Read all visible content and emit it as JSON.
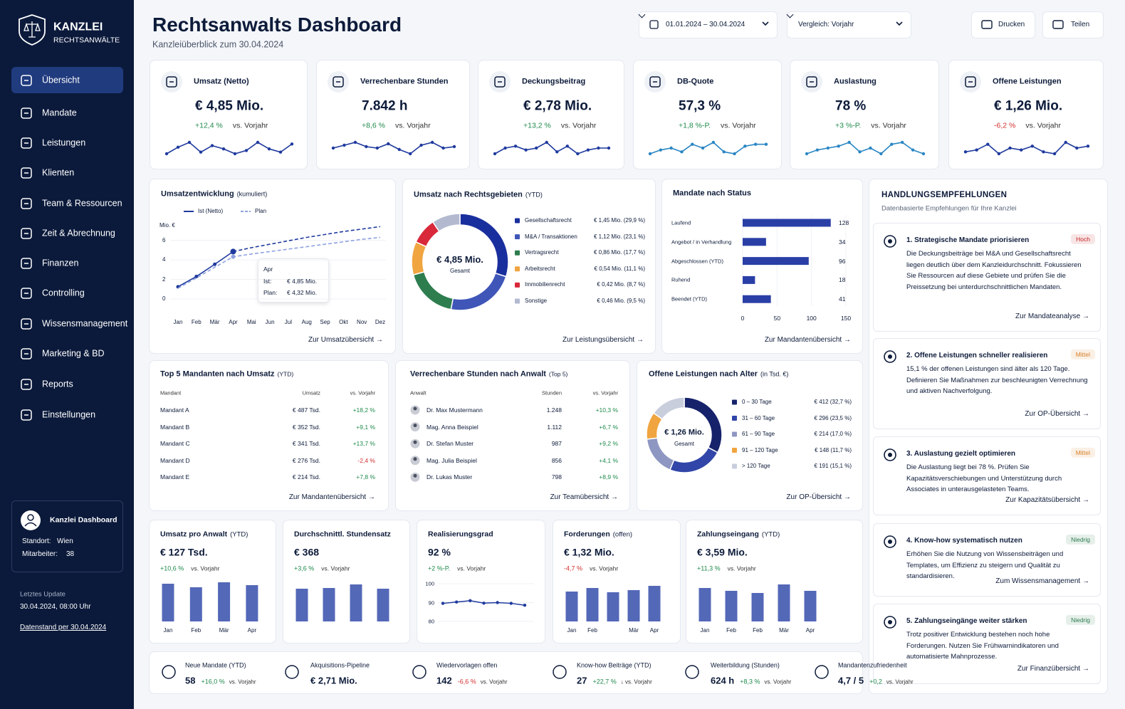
{
  "sidebar": {
    "brand": "KANZLEI",
    "brand_sub": "RECHTSANWÄLTE",
    "nav": [
      "Übersicht",
      "Mandate",
      "Leistungen",
      "Klienten",
      "Team & Ressourcen",
      "Zeit & Abrechnung",
      "Finanzen",
      "Controlling",
      "Wissensmanagement",
      "Marketing & BD",
      "Reports",
      "Einstellungen"
    ],
    "active": "Übersicht",
    "profile": {
      "name": "Kanzlei Dashboard",
      "rows": [
        {
          "label": "Standort:",
          "value": "Wien"
        },
        {
          "label": "Mitarbeiter:",
          "value": "38"
        }
      ]
    },
    "update_label": "Letztes Update",
    "update_value": "30.04.2024, 08:00 Uhr",
    "data_link": "Datenstand per 30.04.2024"
  },
  "header": {
    "title": "Rechtsanwalts Dashboard",
    "subtitle": "Kanzleiüberblick zum 30.04.2024",
    "date_range": "01.01.2024 – 30.04.2024",
    "comparison": "Vergleich: Vorjahr",
    "buttons": [
      "Drucken",
      "Teilen"
    ]
  },
  "kpis": [
    {
      "label": "Umsatz (Netto)",
      "value": "€ 4,85 Mio.",
      "delta": "+12,4 %",
      "compare": "vs. Vorjahr",
      "sparkline": {
        "color": "#1f3a9e",
        "values": [
          3.2,
          3.6,
          3.9,
          3.3,
          3.7,
          3.5,
          3.2,
          3.4,
          3.9,
          3.5,
          3.3,
          3.8
        ]
      }
    },
    {
      "label": "Verrechenbare Stunden",
      "value": "7.842 h",
      "delta": "+8,6 %",
      "compare": "vs. Vorjahr",
      "sparkline": {
        "color": "#1f3a9e",
        "values": [
          3.4,
          3.6,
          3.8,
          3.5,
          3.4,
          3.7,
          3.3,
          3.0,
          3.6,
          3.8,
          3.4,
          3.5
        ]
      }
    },
    {
      "label": "Deckungsbeitrag",
      "value": "€ 2,78 Mio.",
      "delta": "+13,2 %",
      "compare": "vs. Vorjahr",
      "sparkline": {
        "color": "#1f3a9e",
        "values": [
          3.2,
          3.5,
          3.6,
          3.4,
          3.5,
          3.8,
          3.3,
          3.6,
          3.2,
          3.4,
          3.5,
          3.5
        ]
      }
    },
    {
      "label": "DB-Quote",
      "value": "57,3 %",
      "delta": "+1,8 %-P.",
      "compare": "vs. Vorjahr",
      "sparkline": {
        "color": "#2a86c4",
        "values": [
          3.1,
          3.3,
          3.4,
          3.2,
          3.6,
          3.4,
          3.7,
          3.2,
          3.1,
          3.5,
          3.6,
          3.6
        ]
      }
    },
    {
      "label": "Auslastung",
      "value": "78 %",
      "delta": "+3 %-P.",
      "compare": "vs. Vorjahr",
      "sparkline": {
        "color": "#2a86c4",
        "values": [
          3.2,
          3.4,
          3.5,
          3.6,
          3.8,
          3.3,
          3.5,
          3.2,
          3.7,
          3.8,
          3.4,
          3.2
        ]
      }
    },
    {
      "label": "Offene Leistungen",
      "value": "€ 1,26 Mio.",
      "delta": "-6,2 %",
      "compare": "vs. Vorjahr",
      "sparkline": {
        "color": "#1f3a9e",
        "values": [
          3.3,
          3.4,
          3.7,
          3.2,
          3.5,
          3.4,
          3.6,
          3.3,
          3.2,
          3.8,
          3.5,
          3.6
        ]
      }
    }
  ],
  "revenue_trend": {
    "type": "line",
    "title": "Umsatzentwicklung",
    "title_note": "(kumuliert)",
    "y_label": "Mio. €",
    "categories": [
      "Jan",
      "Feb",
      "Mär",
      "Apr",
      "Mai",
      "Jun",
      "Jul",
      "Aug",
      "Sep",
      "Okt",
      "Nov",
      "Dez"
    ],
    "series": [
      {
        "name": "Ist (Netto)",
        "color": "#1f3a9e",
        "values": [
          1.25,
          2.3,
          3.55,
          4.85,
          5.25,
          5.6,
          5.95,
          6.3,
          6.6,
          6.9,
          7.15,
          7.4
        ]
      },
      {
        "name": "Plan",
        "color": "#8fa2e0",
        "dashed": true,
        "values": [
          1.1,
          2.15,
          3.25,
          4.32,
          4.6,
          4.85,
          5.1,
          5.35,
          5.6,
          5.85,
          6.1,
          6.3
        ]
      }
    ],
    "ylim": [
      0,
      7.5
    ],
    "yticks": [
      0,
      2,
      4,
      6
    ],
    "tooltip": {
      "category": "Apr",
      "rows": [
        {
          "label": "Ist:",
          "value": "€ 4,85 Mio."
        },
        {
          "label": "Plan:",
          "value": "€ 4,32 Mio."
        }
      ]
    },
    "link": "Zur Umsatzübersicht"
  },
  "revenue_by_area": {
    "type": "donut",
    "title": "Umsatz nach Rechtsgebieten",
    "title_note": "(YTD)",
    "center_value": "€ 4,85 Mio.",
    "center_label": "Gesamt",
    "categories": [
      "Gesellschaftsrecht",
      "M&A / Transaktionen",
      "Vertragsrecht",
      "Arbeitsrecht",
      "Immobilienrecht",
      "Sonstige"
    ],
    "values": [
      29.9,
      23.1,
      17.7,
      11.1,
      8.7,
      9.5
    ],
    "value_labels": [
      "€ 1,45 Mio. (29,9 %)",
      "€ 1,12 Mio. (23,1 %)",
      "€ 0,86 Mio. (17,7 %)",
      "€ 0,54 Mio. (11,1 %)",
      "€ 0,42 Mio. (8,7 %)",
      "€ 0,46 Mio. (9,5 %)"
    ],
    "colors": [
      "#1a2f9e",
      "#3f56b8",
      "#2e7d4f",
      "#f0a540",
      "#d8283a",
      "#b3bad0"
    ],
    "link": "Zur Leistungsübersicht"
  },
  "mandate_status": {
    "type": "hbar",
    "title": "Mandate nach Status",
    "categories": [
      "Laufend",
      "Angebot / in Verhandlung",
      "Abgeschlossen (YTD)",
      "Ruhend",
      "Beendet (YTD)"
    ],
    "values": [
      128,
      34,
      96,
      18,
      41
    ],
    "color": "#2a3fa6",
    "xlim": [
      0,
      150
    ],
    "xticks": [
      0,
      50,
      100,
      150
    ],
    "link": "Zur Mandantenübersicht"
  },
  "recommendations": {
    "title": "HANDLUNGSEMPFEHLUNGEN",
    "subtitle": "Datenbasierte Empfehlungen für Ihre Kanzlei",
    "items": [
      {
        "title": "1. Strategische Mandate priorisieren",
        "priority": "Hoch",
        "priority_color": "#c62828",
        "text": "Die Deckungsbeiträge bei M&A und Gesellschaftsrecht liegen deutlich über dem Kanzleidurchschnitt. Fokussieren Sie Ressourcen auf diese Gebiete und prüfen Sie die Preissetzung bei unterdurchschnittlichen Mandaten.",
        "link": "Zur Mandateanalyse"
      },
      {
        "title": "2. Offene Leistungen schneller realisieren",
        "priority": "Mittel",
        "priority_color": "#d9822b",
        "text": "15,1 % der offenen Leistungen sind älter als 120 Tage. Definieren Sie Maßnahmen zur beschleunigten Verrechnung und aktiven Nachverfolgung.",
        "link": "Zur OP-Übersicht"
      },
      {
        "title": "3. Auslastung gezielt optimieren",
        "priority": "Mittel",
        "priority_color": "#d9822b",
        "text": "Die Auslastung liegt bei 78 %. Prüfen Sie Kapazitätsverschiebungen und Unterstützung durch Associates in unterausgelasteten Teams.",
        "link": "Zur Kapazitätsübersicht"
      },
      {
        "title": "4. Know-how systematisch nutzen",
        "priority": "Niedrig",
        "priority_color": "#2e7d4f",
        "text": "Erhöhen Sie die Nutzung von Wissensbeiträgen und Templates, um Effizienz zu steigern und Qualität zu standardisieren.",
        "link": "Zum Wissensmanagement"
      },
      {
        "title": "5. Zahlungseingänge weiter stärken",
        "priority": "Niedrig",
        "priority_color": "#2e7d4f",
        "text": "Trotz positiver Entwicklung bestehen noch hohe Forderungen. Nutzen Sie Frühwarnindikatoren und automatisierte Mahnprozesse.",
        "link": "Zur Finanzübersicht"
      }
    ]
  },
  "top_clients": {
    "title": "Top 5 Mandanten nach Umsatz",
    "title_note": "(YTD)",
    "columns": [
      "Mandant",
      "Umsatz",
      "vs. Vorjahr"
    ],
    "rows": [
      [
        "Mandant A",
        "€ 487 Tsd.",
        "+18,2 %"
      ],
      [
        "Mandant B",
        "€ 352 Tsd.",
        "+9,1 %"
      ],
      [
        "Mandant C",
        "€ 341 Tsd.",
        "+13,7 %"
      ],
      [
        "Mandant D",
        "€ 276 Tsd.",
        "-2,4 %"
      ],
      [
        "Mandant E",
        "€ 214 Tsd.",
        "+7,8 %"
      ]
    ],
    "link": "Zur Mandantenübersicht"
  },
  "hours_by_lawyer": {
    "title": "Verrechenbare Stunden nach Anwalt",
    "title_note": "(Top 5)",
    "columns": [
      "Anwalt",
      "Stunden",
      "vs. Vorjahr"
    ],
    "rows": [
      [
        "Dr. Max Mustermann",
        "1.248",
        "+10,3 %"
      ],
      [
        "Mag. Anna Beispiel",
        "1.112",
        "+6,7 %"
      ],
      [
        "Dr. Stefan Muster",
        "987",
        "+9,2 %"
      ],
      [
        "Mag. Julia Beispiel",
        "856",
        "+4,1 %"
      ],
      [
        "Dr. Lukas Muster",
        "798",
        "+8,9 %"
      ]
    ],
    "link": "Zur Teamübersicht"
  },
  "open_items_age": {
    "type": "donut",
    "title": "Offene Leistungen nach Alter",
    "title_note": "(in Tsd. €)",
    "center_value": "€ 1,26 Mio.",
    "center_label": "Gesamt",
    "categories": [
      "0 – 30 Tage",
      "31 – 60 Tage",
      "61 – 90 Tage",
      "91 – 120 Tage",
      "> 120 Tage"
    ],
    "values": [
      32.7,
      23.5,
      17.0,
      11.7,
      15.1
    ],
    "value_labels": [
      "€ 412 (32,7 %)",
      "€ 296 (23,5 %)",
      "€ 214 (17,0 %)",
      "€ 148 (11,7 %)",
      "€ 191 (15,1 %)"
    ],
    "colors": [
      "#16236b",
      "#3146a8",
      "#8e97c2",
      "#f0a540",
      "#c9cedd"
    ],
    "link": "Zur OP-Übersicht"
  },
  "mini_cards": [
    {
      "type": "bar",
      "title": "Umsatz pro Anwalt",
      "title_note": "(YTD)",
      "value": "€ 127 Tsd.",
      "delta": "+10,6 %",
      "compare": "vs. Vorjahr",
      "categories": [
        "Jan",
        "Feb",
        "Mär",
        "Apr"
      ],
      "values": [
        53,
        48,
        55,
        51
      ],
      "ylim": [
        0,
        60
      ],
      "color": "#5468b8"
    },
    {
      "type": "bar",
      "title": "Durchschnittl. Stundensatz",
      "value": "€ 368",
      "delta": "+3,6 %",
      "compare": "vs. Vorjahr",
      "categories": [
        null,
        null,
        null,
        null
      ],
      "values": [
        46,
        47,
        52,
        46
      ],
      "ylim": [
        0,
        60
      ],
      "color": "#5468b8"
    },
    {
      "type": "line",
      "title": "Realisierungsgrad",
      "value": "92 %",
      "delta": "+2 %-P.",
      "compare": "vs. Vorjahr",
      "values": [
        89.6,
        90.3,
        91,
        89.7,
        90,
        89.6,
        88.6
      ],
      "ylim": [
        80,
        100
      ],
      "yticks": [
        80,
        90,
        100
      ],
      "color": "#1f3a9e"
    },
    {
      "type": "bar",
      "title": "Forderungen",
      "title_note": "(offen)",
      "value": "€ 1,32 Mio.",
      "delta": "-4,7 %",
      "compare": "vs. Vorjahr",
      "categories": [
        "Jan",
        "Feb",
        null,
        "Mär",
        "Apr"
      ],
      "values": [
        42,
        47,
        41,
        44,
        50
      ],
      "ylim": [
        0,
        60
      ],
      "color": "#5468b8"
    },
    {
      "type": "bar",
      "title": "Zahlungseingang",
      "title_note": "(YTD)",
      "value": "€ 3,59 Mio.",
      "delta": "+11,3 %",
      "compare": "vs. Vorjahr",
      "categories": [
        "Jan",
        "Feb",
        "Feb",
        "Mär",
        "Apr"
      ],
      "values": [
        47,
        43,
        40,
        52,
        43
      ],
      "ylim": [
        0,
        60
      ],
      "color": "#5468b8"
    }
  ],
  "footer_stats": [
    {
      "label": "Neue Mandate (YTD)",
      "value": "58",
      "delta": "+16,0 %",
      "compare": "vs. Vorjahr"
    },
    {
      "label": "Akquisitions-Pipeline",
      "value": "€ 2,71 Mio."
    },
    {
      "label": "Wiedervorlagen offen",
      "value": "142",
      "delta": "-6,6 %",
      "compare": "vs. Vorjahr"
    },
    {
      "label": "Know-how Beiträge (YTD)",
      "value": "27",
      "delta": "+22,7 %",
      "compare": "↓ vs. Vorjahr"
    },
    {
      "label": "Weiterbildung (Stunden)",
      "value": "624 h",
      "delta": "+8,3 %",
      "compare": "vs. Vorjahr"
    },
    {
      "label": "Mandantenzufriedenheit",
      "value": "4,7 / 5",
      "delta": "+0,2",
      "compare": "vs. Vorjahr"
    }
  ]
}
